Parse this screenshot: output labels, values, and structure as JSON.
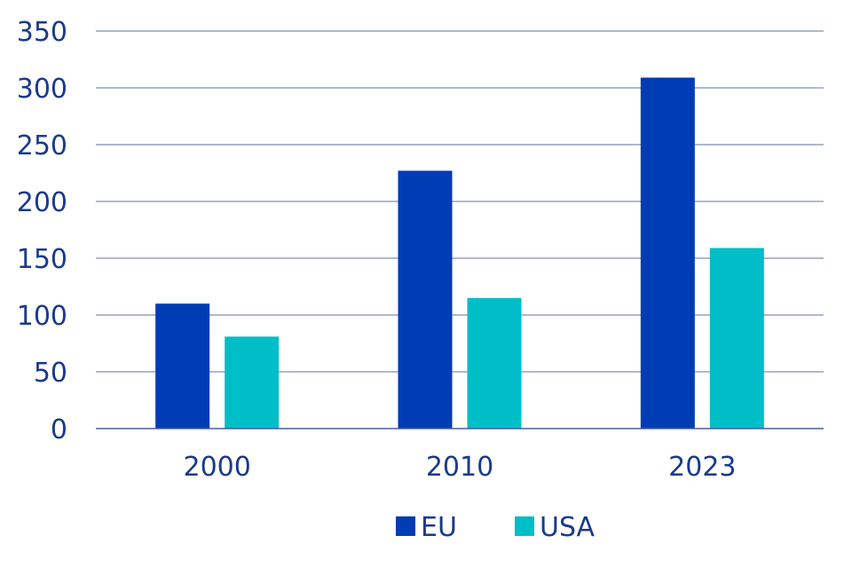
{
  "chart_data": {
    "type": "bar",
    "title": "",
    "xlabel": "",
    "ylabel": "",
    "categories": [
      "2000",
      "2010",
      "2023"
    ],
    "series": [
      {
        "name": "EU",
        "values": [
          110,
          227,
          309
        ],
        "color": "#003cb4"
      },
      {
        "name": "USA",
        "values": [
          81,
          115,
          159
        ],
        "color": "#00bec8"
      }
    ],
    "ylim": [
      0,
      350
    ],
    "yticks": [
      0,
      50,
      100,
      150,
      200,
      250,
      300,
      350
    ],
    "grid": true,
    "legend": "bottom-center",
    "colors": {
      "text": "#1a3a8c",
      "grid": "#7f8fb3"
    }
  }
}
